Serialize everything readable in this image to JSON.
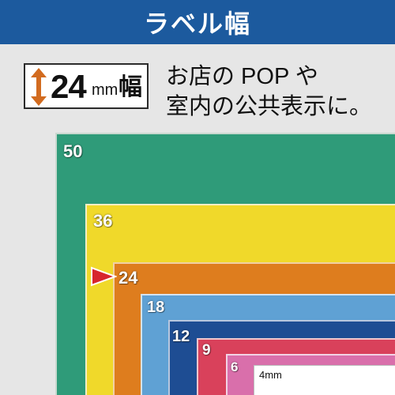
{
  "header": {
    "title": "ラベル幅"
  },
  "badge": {
    "number": "24",
    "unit": "mm",
    "kanji": "幅"
  },
  "description": {
    "line1": "お店の POP や",
    "line2": "室内の公共表示に。"
  },
  "widths": {
    "w50": "50",
    "w36": "36",
    "w24": "24",
    "w18": "18",
    "w12": "12",
    "w9": "9",
    "w6": "6",
    "w4": "4mm"
  },
  "colors": {
    "header": "#1c5a9e",
    "w50": "#2f9b79",
    "w36": "#f0d92a",
    "w24": "#de7d1e",
    "w18": "#5fa1d4",
    "w12": "#1e4d93",
    "w9": "#d9415b",
    "w6": "#d96fab",
    "w4": "#ffffff",
    "marker": "#d7262e",
    "arrow": "#d26b1f"
  },
  "icons": {
    "badge_arrow": "double-arrow-vertical-icon",
    "marker": "triangle-pointer-icon"
  }
}
